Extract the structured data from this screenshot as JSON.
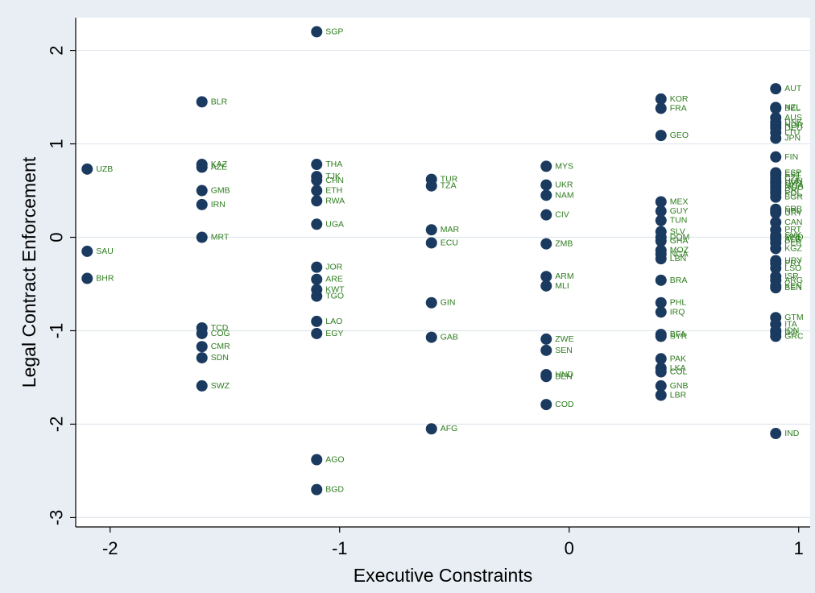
{
  "chart_data": {
    "type": "scatter",
    "xlabel": "Executive Constraints",
    "ylabel": "Legal Contract Enforcement",
    "xlim": [
      -2.15,
      1.05
    ],
    "ylim": [
      -3.1,
      2.35
    ],
    "xticks": [
      -2,
      -1,
      0,
      1
    ],
    "yticks": [
      -3,
      -2,
      -1,
      0,
      1,
      2
    ],
    "grid": "horizontal",
    "colors": {
      "frame": "#e8eef4",
      "plot": "#ffffff",
      "marker": "#1a3a5f",
      "label": "#2e7d1f",
      "grid": "#dfe6ec"
    },
    "points": [
      {
        "label": "UZB",
        "x": -2.1,
        "y": 0.73
      },
      {
        "label": "SAU",
        "x": -2.1,
        "y": -0.15
      },
      {
        "label": "BHR",
        "x": -2.1,
        "y": -0.44
      },
      {
        "label": "BLR",
        "x": -1.6,
        "y": 1.45
      },
      {
        "label": "KAZ",
        "x": -1.6,
        "y": 0.78
      },
      {
        "label": "AZE",
        "x": -1.6,
        "y": 0.75
      },
      {
        "label": "GMB",
        "x": -1.6,
        "y": 0.5
      },
      {
        "label": "IRN",
        "x": -1.6,
        "y": 0.35
      },
      {
        "label": "MRT",
        "x": -1.6,
        "y": 0.0
      },
      {
        "label": "TCD",
        "x": -1.6,
        "y": -0.97
      },
      {
        "label": "COG",
        "x": -1.6,
        "y": -1.03
      },
      {
        "label": "CMR",
        "x": -1.6,
        "y": -1.17
      },
      {
        "label": "SDN",
        "x": -1.6,
        "y": -1.29
      },
      {
        "label": "SWZ",
        "x": -1.6,
        "y": -1.59
      },
      {
        "label": "SGP",
        "x": -1.1,
        "y": 2.2
      },
      {
        "label": "THA",
        "x": -1.1,
        "y": 0.78
      },
      {
        "label": "TJK",
        "x": -1.1,
        "y": 0.65
      },
      {
        "label": "CHN",
        "x": -1.1,
        "y": 0.61
      },
      {
        "label": "ETH",
        "x": -1.1,
        "y": 0.5
      },
      {
        "label": "RWA",
        "x": -1.1,
        "y": 0.39
      },
      {
        "label": "UGA",
        "x": -1.1,
        "y": 0.14
      },
      {
        "label": "JOR",
        "x": -1.1,
        "y": -0.32
      },
      {
        "label": "ARE",
        "x": -1.1,
        "y": -0.45
      },
      {
        "label": "KWT",
        "x": -1.1,
        "y": -0.56
      },
      {
        "label": "TGO",
        "x": -1.1,
        "y": -0.63
      },
      {
        "label": "LAO",
        "x": -1.1,
        "y": -0.9
      },
      {
        "label": "EGY",
        "x": -1.1,
        "y": -1.03
      },
      {
        "label": "AGO",
        "x": -1.1,
        "y": -2.38
      },
      {
        "label": "BGD",
        "x": -1.1,
        "y": -2.7
      },
      {
        "label": "TUR",
        "x": -0.6,
        "y": 0.62
      },
      {
        "label": "TZA",
        "x": -0.6,
        "y": 0.55
      },
      {
        "label": "MAR",
        "x": -0.6,
        "y": 0.08
      },
      {
        "label": "ECU",
        "x": -0.6,
        "y": -0.06
      },
      {
        "label": "GIN",
        "x": -0.6,
        "y": -0.7
      },
      {
        "label": "GAB",
        "x": -0.6,
        "y": -1.07
      },
      {
        "label": "AFG",
        "x": -0.6,
        "y": -2.05
      },
      {
        "label": "MYS",
        "x": -0.1,
        "y": 0.76
      },
      {
        "label": "UKR",
        "x": -0.1,
        "y": 0.56
      },
      {
        "label": "NAM",
        "x": -0.1,
        "y": 0.45
      },
      {
        "label": "CIV",
        "x": -0.1,
        "y": 0.24
      },
      {
        "label": "ZMB",
        "x": -0.1,
        "y": -0.07
      },
      {
        "label": "ARM",
        "x": -0.1,
        "y": -0.42
      },
      {
        "label": "MLI",
        "x": -0.1,
        "y": -0.52
      },
      {
        "label": "ZWE",
        "x": -0.1,
        "y": -1.09
      },
      {
        "label": "SEN",
        "x": -0.1,
        "y": -1.21
      },
      {
        "label": "HND",
        "x": -0.1,
        "y": -1.47
      },
      {
        "label": "BEN",
        "x": -0.1,
        "y": -1.49
      },
      {
        "label": "COD",
        "x": -0.1,
        "y": -1.79
      },
      {
        "label": "KOR",
        "x": 0.4,
        "y": 1.48
      },
      {
        "label": "FRA",
        "x": 0.4,
        "y": 1.38
      },
      {
        "label": "GEO",
        "x": 0.4,
        "y": 1.09
      },
      {
        "label": "MEX",
        "x": 0.4,
        "y": 0.38
      },
      {
        "label": "GUY",
        "x": 0.4,
        "y": 0.28
      },
      {
        "label": "TUN",
        "x": 0.4,
        "y": 0.18
      },
      {
        "label": "SLV",
        "x": 0.4,
        "y": 0.06
      },
      {
        "label": "DOM",
        "x": 0.4,
        "y": 0.0
      },
      {
        "label": "GHA",
        "x": 0.4,
        "y": -0.04
      },
      {
        "label": "MOZ",
        "x": 0.4,
        "y": -0.14
      },
      {
        "label": "NGA",
        "x": 0.4,
        "y": -0.18
      },
      {
        "label": "LBN",
        "x": 0.4,
        "y": -0.23
      },
      {
        "label": "BRA",
        "x": 0.4,
        "y": -0.46
      },
      {
        "label": "PHL",
        "x": 0.4,
        "y": -0.7
      },
      {
        "label": "IRQ",
        "x": 0.4,
        "y": -0.8
      },
      {
        "label": "BFA",
        "x": 0.4,
        "y": -1.04
      },
      {
        "label": "SYR",
        "x": 0.4,
        "y": -1.06
      },
      {
        "label": "PAK",
        "x": 0.4,
        "y": -1.3
      },
      {
        "label": "LKA",
        "x": 0.4,
        "y": -1.4
      },
      {
        "label": "COL",
        "x": 0.4,
        "y": -1.44
      },
      {
        "label": "GNB",
        "x": 0.4,
        "y": -1.59
      },
      {
        "label": "LBR",
        "x": 0.4,
        "y": -1.69
      },
      {
        "label": "AUT",
        "x": 0.9,
        "y": 1.59
      },
      {
        "label": "NZL",
        "x": 0.9,
        "y": 1.39
      },
      {
        "label": "BEL",
        "x": 0.9,
        "y": 1.38
      },
      {
        "label": "AUS",
        "x": 0.9,
        "y": 1.28
      },
      {
        "label": "DNK",
        "x": 0.9,
        "y": 1.23
      },
      {
        "label": "NOR",
        "x": 0.9,
        "y": 1.2
      },
      {
        "label": "DEU",
        "x": 0.9,
        "y": 1.17
      },
      {
        "label": "LTU",
        "x": 0.9,
        "y": 1.12
      },
      {
        "label": "JPN",
        "x": 0.9,
        "y": 1.06
      },
      {
        "label": "FIN",
        "x": 0.9,
        "y": 0.86
      },
      {
        "label": "ESP",
        "x": 0.9,
        "y": 0.69
      },
      {
        "label": "EST",
        "x": 0.9,
        "y": 0.67
      },
      {
        "label": "CZE",
        "x": 0.9,
        "y": 0.63
      },
      {
        "label": "HUN",
        "x": 0.9,
        "y": 0.6
      },
      {
        "label": "SVN",
        "x": 0.9,
        "y": 0.58
      },
      {
        "label": "MDA",
        "x": 0.9,
        "y": 0.55
      },
      {
        "label": "ROU",
        "x": 0.9,
        "y": 0.53
      },
      {
        "label": "CRI",
        "x": 0.9,
        "y": 0.5
      },
      {
        "label": "POL",
        "x": 0.9,
        "y": 0.47
      },
      {
        "label": "BGR",
        "x": 0.9,
        "y": 0.43
      },
      {
        "label": "SRB",
        "x": 0.9,
        "y": 0.3
      },
      {
        "label": "NPL",
        "x": 0.9,
        "y": 0.28
      },
      {
        "label": "URY",
        "x": 0.9,
        "y": 0.26
      },
      {
        "label": "CAN",
        "x": 0.9,
        "y": 0.16
      },
      {
        "label": "PRT",
        "x": 0.9,
        "y": 0.08
      },
      {
        "label": "SVK",
        "x": 0.9,
        "y": 0.02
      },
      {
        "label": "MKD",
        "x": 0.9,
        "y": 0.0
      },
      {
        "label": "ALB",
        "x": 0.9,
        "y": -0.02
      },
      {
        "label": "PER",
        "x": 0.9,
        "y": -0.06
      },
      {
        "label": "KGZ",
        "x": 0.9,
        "y": -0.12
      },
      {
        "label": "URY",
        "x": 0.9,
        "y": -0.25
      },
      {
        "label": "PRY",
        "x": 0.9,
        "y": -0.28
      },
      {
        "label": "LSO",
        "x": 0.9,
        "y": -0.33
      },
      {
        "label": "ISR",
        "x": 0.9,
        "y": -0.42
      },
      {
        "label": "ARG",
        "x": 0.9,
        "y": -0.46
      },
      {
        "label": "KEN",
        "x": 0.9,
        "y": -0.52
      },
      {
        "label": "BEN",
        "x": 0.9,
        "y": -0.54
      },
      {
        "label": "GTM",
        "x": 0.9,
        "y": -0.86
      },
      {
        "label": "ITA",
        "x": 0.9,
        "y": -0.93
      },
      {
        "label": "IDN",
        "x": 0.9,
        "y": -1.0
      },
      {
        "label": "DJI",
        "x": 0.9,
        "y": -1.02
      },
      {
        "label": "GRC",
        "x": 0.9,
        "y": -1.06
      },
      {
        "label": "IND",
        "x": 0.9,
        "y": -2.1
      }
    ]
  }
}
